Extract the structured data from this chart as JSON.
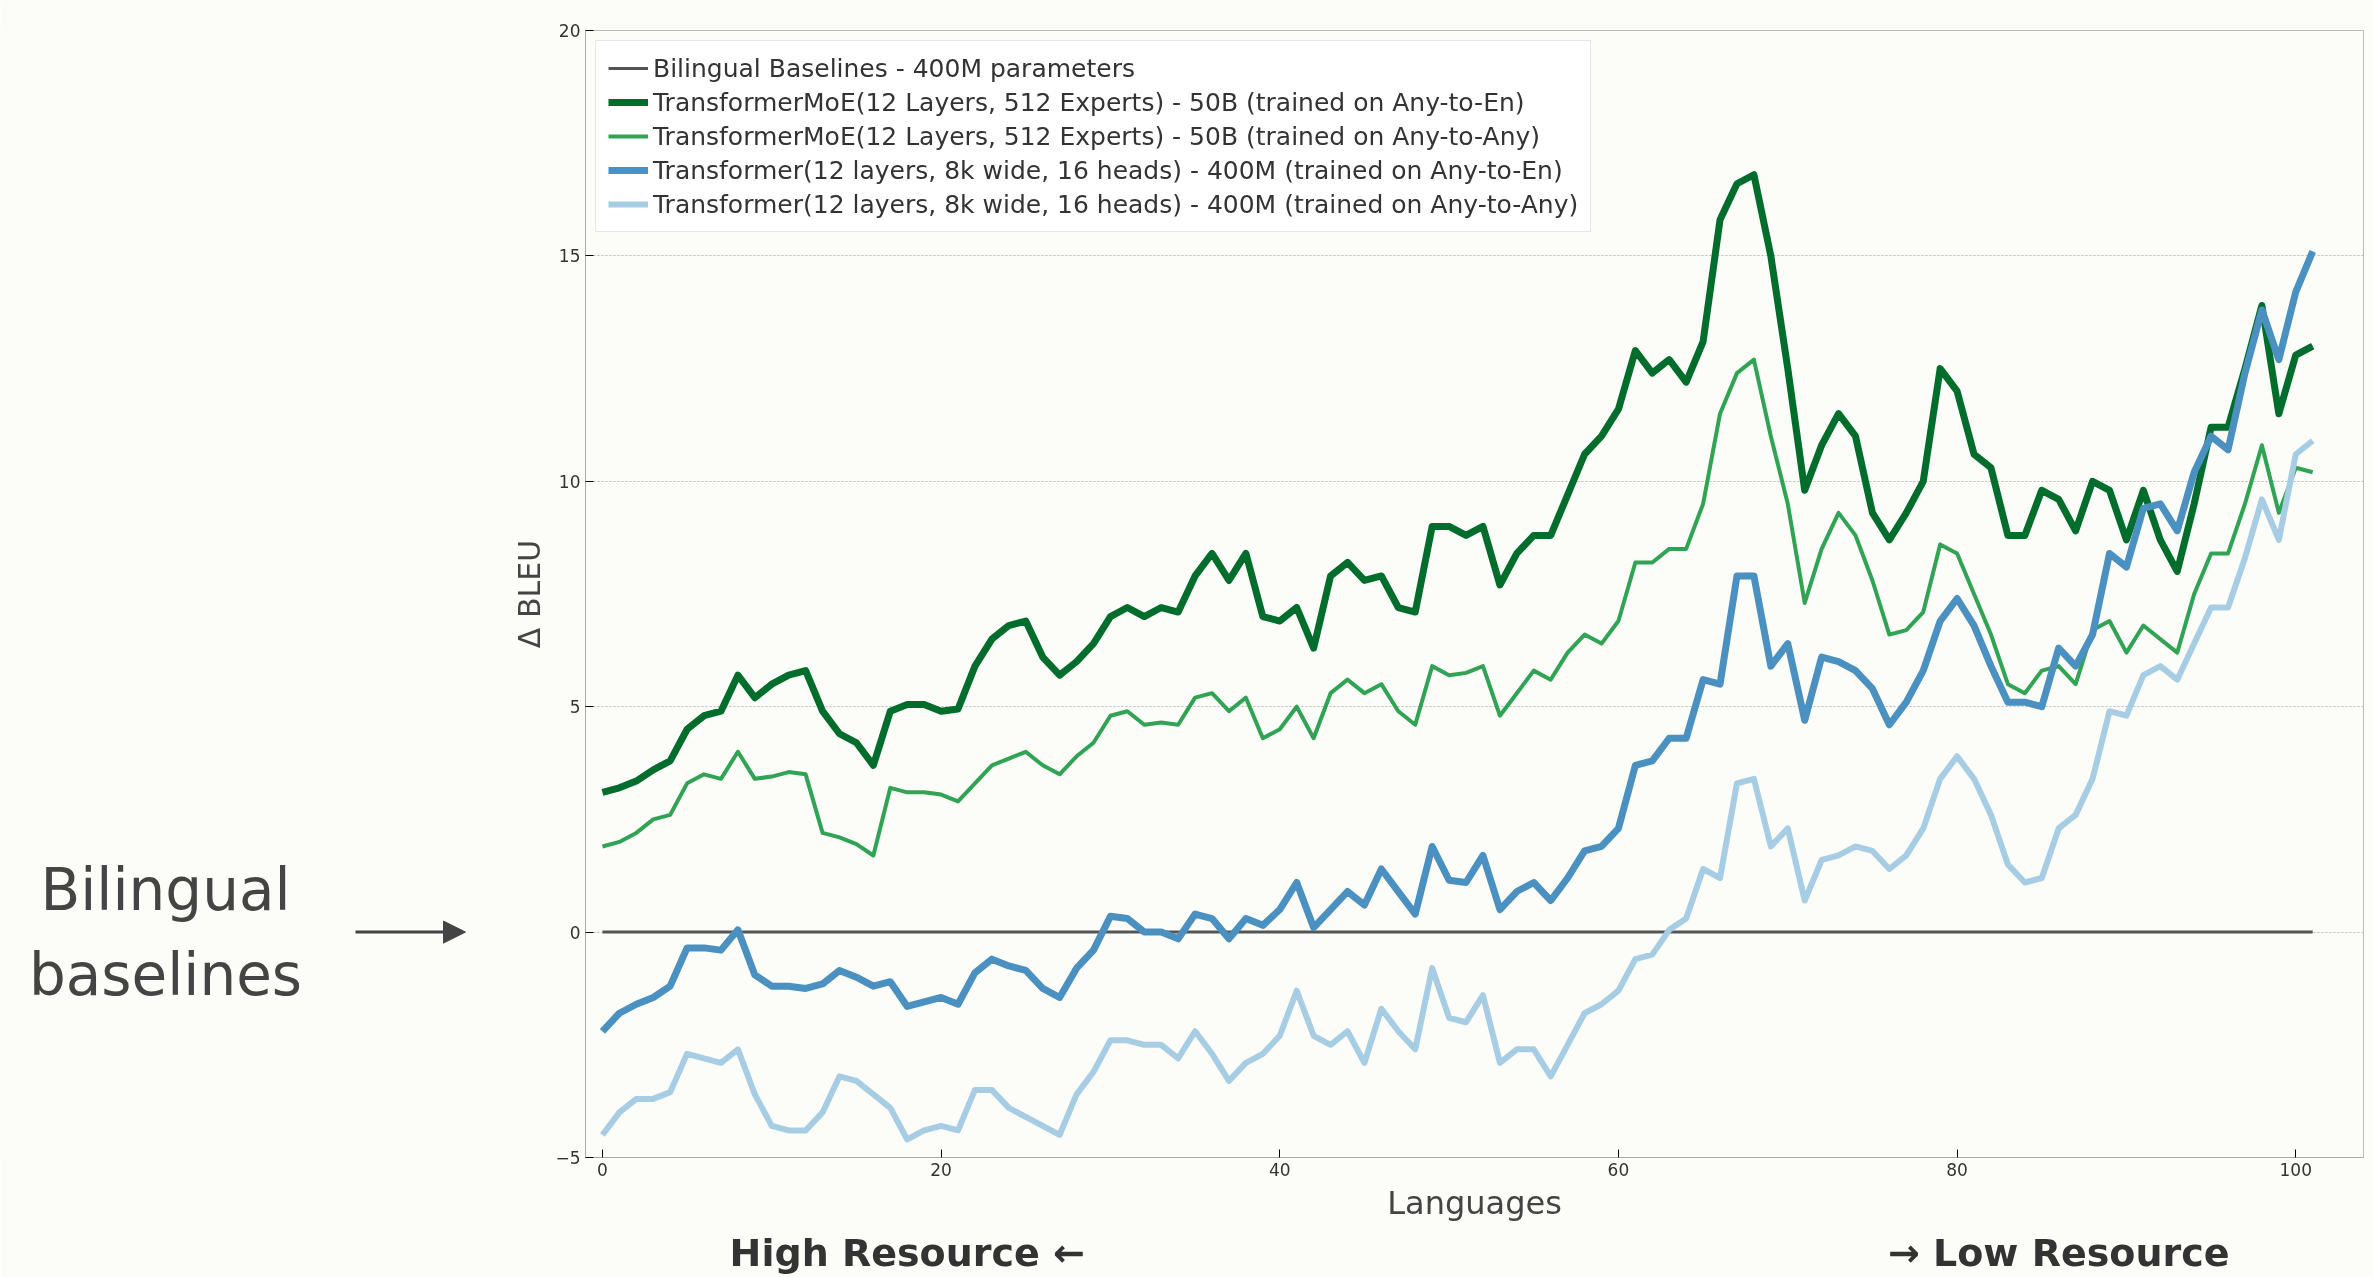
{
  "chart_data": {
    "type": "line",
    "xlabel": "Languages",
    "ylabel": "Δ BLEU",
    "xlim": [
      -1,
      104
    ],
    "ylim": [
      -5,
      20
    ],
    "xticks": [
      0,
      20,
      40,
      60,
      80,
      100
    ],
    "yticks": [
      -5,
      0,
      5,
      10,
      15,
      20
    ],
    "grid": "y",
    "legend": "top left",
    "line_style": "solid",
    "marker": "none",
    "annotations": [
      "Bilingual baselines",
      "High Resource ←",
      "→ Low Resource"
    ],
    "series": [
      {
        "name": "Bilingual Baselines - 400M parameters",
        "color": "#555555",
        "x": [
          0,
          101
        ],
        "values": [
          0,
          0
        ]
      },
      {
        "name": "TransformerMoE(12 Layers, 512 Experts) - 50B (trained on Any-to-En)",
        "color": "#006d2c",
        "x": [
          0,
          1,
          2,
          3,
          4,
          5,
          6,
          7,
          8,
          9,
          10,
          11,
          12,
          13,
          14,
          15,
          16,
          17,
          18,
          19,
          20,
          21,
          22,
          23,
          24,
          25,
          26,
          27,
          28,
          29,
          30,
          31,
          32,
          33,
          34,
          35,
          36,
          37,
          38,
          39,
          40,
          41,
          42,
          43,
          44,
          45,
          46,
          47,
          48,
          49,
          50,
          51,
          52,
          53,
          54,
          55,
          56,
          57,
          58,
          59,
          60,
          61,
          62,
          63,
          64,
          65,
          66,
          67,
          68,
          69,
          70,
          71,
          72,
          73,
          74,
          75,
          76,
          77,
          78,
          79,
          80,
          81,
          82,
          83,
          84,
          85,
          86,
          87,
          88,
          89,
          90,
          91,
          92,
          93,
          94,
          95,
          96,
          97,
          98,
          99,
          100,
          101
        ],
        "values": [
          3.1,
          3.2,
          3.35,
          3.6,
          3.8,
          4.5,
          4.8,
          4.9,
          5.7,
          5.2,
          5.5,
          5.7,
          5.8,
          4.9,
          4.4,
          4.2,
          3.7,
          4.9,
          5.05,
          5.05,
          4.9,
          4.95,
          5.9,
          6.5,
          6.8,
          6.9,
          6.1,
          5.7,
          6.0,
          6.4,
          7.0,
          7.2,
          7.0,
          7.2,
          7.1,
          7.9,
          8.4,
          7.8,
          8.4,
          7.0,
          6.9,
          7.2,
          6.3,
          7.9,
          8.2,
          7.8,
          7.9,
          7.2,
          7.1,
          9.0,
          9.0,
          8.8,
          9.0,
          7.7,
          8.4,
          8.8,
          8.8,
          9.7,
          10.6,
          11.0,
          11.6,
          12.9,
          12.4,
          12.7,
          12.2,
          13.1,
          15.8,
          16.6,
          16.8,
          15.0,
          12.5,
          9.8,
          10.8,
          11.5,
          11.0,
          9.3,
          8.7,
          9.3,
          10.0,
          12.5,
          12.0,
          10.6,
          10.3,
          8.8,
          8.8,
          9.8,
          9.6,
          8.9,
          10.0,
          9.8,
          8.7,
          9.8,
          8.7,
          8.0,
          9.5,
          11.2,
          11.2,
          12.5,
          13.9,
          11.5,
          12.8,
          13.0
        ]
      },
      {
        "name": "TransformerMoE(12 Layers, 512 Experts) - 50B (trained on Any-to-Any)",
        "color": "#31a354",
        "x": [
          0,
          1,
          2,
          3,
          4,
          5,
          6,
          7,
          8,
          9,
          10,
          11,
          12,
          13,
          14,
          15,
          16,
          17,
          18,
          19,
          20,
          21,
          22,
          23,
          24,
          25,
          26,
          27,
          28,
          29,
          30,
          31,
          32,
          33,
          34,
          35,
          36,
          37,
          38,
          39,
          40,
          41,
          42,
          43,
          44,
          45,
          46,
          47,
          48,
          49,
          50,
          51,
          52,
          53,
          54,
          55,
          56,
          57,
          58,
          59,
          60,
          61,
          62,
          63,
          64,
          65,
          66,
          67,
          68,
          69,
          70,
          71,
          72,
          73,
          74,
          75,
          76,
          77,
          78,
          79,
          80,
          81,
          82,
          83,
          84,
          85,
          86,
          87,
          88,
          89,
          90,
          91,
          92,
          93,
          94,
          95,
          96,
          97,
          98,
          99,
          100,
          101
        ],
        "values": [
          1.9,
          2.0,
          2.2,
          2.5,
          2.6,
          3.3,
          3.5,
          3.4,
          4.0,
          3.4,
          3.45,
          3.55,
          3.5,
          2.2,
          2.1,
          1.95,
          1.7,
          3.2,
          3.1,
          3.1,
          3.05,
          2.9,
          3.3,
          3.7,
          3.85,
          4.0,
          3.7,
          3.5,
          3.9,
          4.2,
          4.8,
          4.9,
          4.6,
          4.65,
          4.6,
          5.2,
          5.3,
          4.9,
          5.2,
          4.3,
          4.5,
          5.0,
          4.3,
          5.3,
          5.6,
          5.3,
          5.5,
          4.9,
          4.6,
          5.9,
          5.7,
          5.75,
          5.9,
          4.8,
          5.3,
          5.8,
          5.6,
          6.2,
          6.6,
          6.4,
          6.9,
          8.2,
          8.2,
          8.5,
          8.5,
          9.5,
          11.5,
          12.4,
          12.7,
          11.0,
          9.5,
          7.3,
          8.5,
          9.3,
          8.8,
          7.8,
          6.6,
          6.7,
          7.1,
          8.6,
          8.4,
          7.5,
          6.6,
          5.5,
          5.3,
          5.8,
          5.9,
          5.5,
          6.7,
          6.9,
          6.2,
          6.8,
          6.5,
          6.2,
          7.5,
          8.4,
          8.4,
          9.5,
          10.8,
          9.3,
          10.3,
          10.2
        ]
      },
      {
        "name": "Transformer(12 layers, 8k wide, 16 heads) - 400M (trained on Any-to-En)",
        "color": "#4a90c0",
        "x": [
          0,
          1,
          2,
          3,
          4,
          5,
          6,
          7,
          8,
          9,
          10,
          11,
          12,
          13,
          14,
          15,
          16,
          17,
          18,
          19,
          20,
          21,
          22,
          23,
          24,
          25,
          26,
          27,
          28,
          29,
          30,
          31,
          32,
          33,
          34,
          35,
          36,
          37,
          38,
          39,
          40,
          41,
          42,
          43,
          44,
          45,
          46,
          47,
          48,
          49,
          50,
          51,
          52,
          53,
          54,
          55,
          56,
          57,
          58,
          59,
          60,
          61,
          62,
          63,
          64,
          65,
          66,
          67,
          68,
          69,
          70,
          71,
          72,
          73,
          74,
          75,
          76,
          77,
          78,
          79,
          80,
          81,
          82,
          83,
          84,
          85,
          86,
          87,
          88,
          89,
          90,
          91,
          92,
          93,
          94,
          95,
          96,
          97,
          98,
          99,
          100,
          101
        ],
        "values": [
          -2.2,
          -1.8,
          -1.6,
          -1.45,
          -1.2,
          -0.35,
          -0.35,
          -0.4,
          0.05,
          -0.95,
          -1.2,
          -1.2,
          -1.25,
          -1.15,
          -0.85,
          -1.0,
          -1.2,
          -1.1,
          -1.65,
          -1.55,
          -1.45,
          -1.6,
          -0.9,
          -0.6,
          -0.75,
          -0.85,
          -1.25,
          -1.45,
          -0.8,
          -0.4,
          0.35,
          0.3,
          0.0,
          0.0,
          -0.15,
          0.4,
          0.3,
          -0.15,
          0.3,
          0.15,
          0.5,
          1.1,
          0.1,
          0.5,
          0.9,
          0.6,
          1.4,
          0.9,
          0.4,
          1.9,
          1.15,
          1.1,
          1.7,
          0.5,
          0.9,
          1.1,
          0.7,
          1.2,
          1.8,
          1.9,
          2.3,
          3.7,
          3.8,
          4.3,
          4.3,
          5.6,
          5.5,
          7.9,
          7.9,
          5.9,
          6.4,
          4.7,
          6.1,
          6.0,
          5.8,
          5.4,
          4.6,
          5.1,
          5.8,
          6.9,
          7.4,
          6.8,
          5.9,
          5.1,
          5.1,
          5.0,
          6.3,
          5.9,
          6.6,
          8.4,
          8.1,
          9.4,
          9.5,
          8.9,
          10.2,
          11.0,
          10.7,
          12.4,
          13.8,
          12.7,
          14.2,
          15.1
        ]
      },
      {
        "name": "Transformer(12 layers, 8k wide, 16 heads) - 400M (trained on Any-to-Any)",
        "color": "#a6cde3",
        "x": [
          0,
          1,
          2,
          3,
          4,
          5,
          6,
          7,
          8,
          9,
          10,
          11,
          12,
          13,
          14,
          15,
          16,
          17,
          18,
          19,
          20,
          21,
          22,
          23,
          24,
          25,
          26,
          27,
          28,
          29,
          30,
          31,
          32,
          33,
          34,
          35,
          36,
          37,
          38,
          39,
          40,
          41,
          42,
          43,
          44,
          45,
          46,
          47,
          48,
          49,
          50,
          51,
          52,
          53,
          54,
          55,
          56,
          57,
          58,
          59,
          60,
          61,
          62,
          63,
          64,
          65,
          66,
          67,
          68,
          69,
          70,
          71,
          72,
          73,
          74,
          75,
          76,
          77,
          78,
          79,
          80,
          81,
          82,
          83,
          84,
          85,
          86,
          87,
          88,
          89,
          90,
          91,
          92,
          93,
          94,
          95,
          96,
          97,
          98,
          99,
          100,
          101
        ],
        "values": [
          -4.5,
          -4.0,
          -3.7,
          -3.7,
          -3.55,
          -2.7,
          -2.8,
          -2.9,
          -2.6,
          -3.6,
          -4.3,
          -4.4,
          -4.4,
          -4.0,
          -3.2,
          -3.3,
          -3.6,
          -3.9,
          -4.6,
          -4.4,
          -4.3,
          -4.4,
          -3.5,
          -3.5,
          -3.9,
          -4.1,
          -4.3,
          -4.5,
          -3.6,
          -3.1,
          -2.4,
          -2.4,
          -2.5,
          -2.5,
          -2.8,
          -2.2,
          -2.7,
          -3.3,
          -2.9,
          -2.7,
          -2.3,
          -1.3,
          -2.3,
          -2.5,
          -2.2,
          -2.9,
          -1.7,
          -2.2,
          -2.6,
          -0.8,
          -1.9,
          -2.0,
          -1.4,
          -2.9,
          -2.6,
          -2.6,
          -3.2,
          -2.5,
          -1.8,
          -1.6,
          -1.3,
          -0.6,
          -0.5,
          0.05,
          0.3,
          1.4,
          1.2,
          3.3,
          3.4,
          1.9,
          2.3,
          0.7,
          1.6,
          1.7,
          1.9,
          1.8,
          1.4,
          1.7,
          2.3,
          3.4,
          3.9,
          3.4,
          2.6,
          1.5,
          1.1,
          1.2,
          2.3,
          2.6,
          3.4,
          4.9,
          4.8,
          5.7,
          5.9,
          5.6,
          6.4,
          7.2,
          7.2,
          8.3,
          9.6,
          8.7,
          10.6,
          10.9
        ]
      }
    ]
  }
}
